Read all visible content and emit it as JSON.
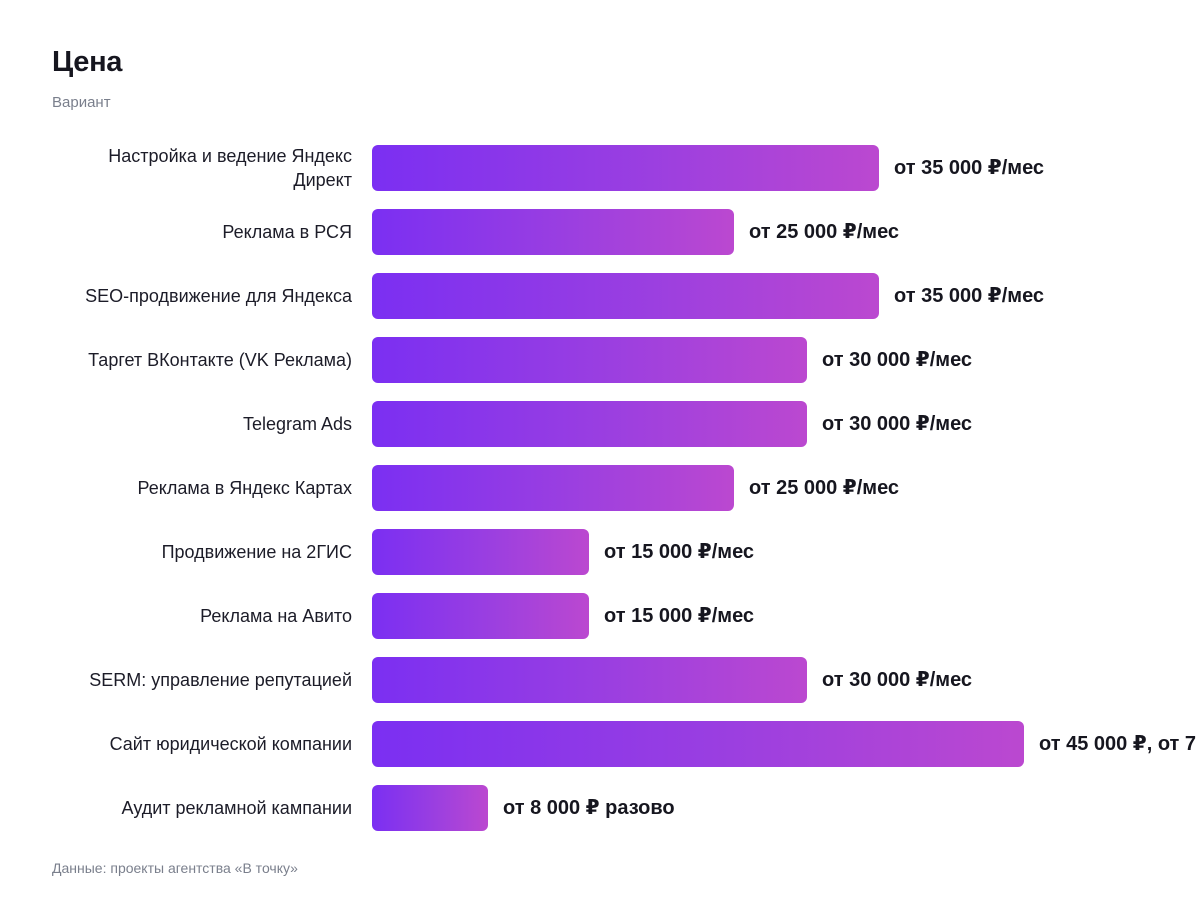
{
  "chart_data": {
    "type": "bar",
    "orientation": "horizontal",
    "title": "Цена",
    "subtitle": "Вариант",
    "source": "Данные: проекты агентства «В точку»",
    "categories": [
      "Настройка и ведение Яндекс Директ",
      "Реклама в РСЯ",
      "SEO-продвижение для Яндекса",
      "Таргет ВКонтакте (VK Реклама)",
      "Telegram Ads",
      "Реклама в Яндекс Картах",
      "Продвижение на 2ГИС",
      "Реклама на Авито",
      "SERM: управление репутацией",
      "Сайт юридической компании",
      "Аудит рекламной кампании"
    ],
    "values": [
      35000,
      25000,
      35000,
      30000,
      30000,
      25000,
      15000,
      15000,
      30000,
      45000,
      8000
    ],
    "value_labels": [
      "от 35 000 ₽/мес",
      "от 25 000 ₽/мес",
      "от 35 000 ₽/мес",
      "от 30 000 ₽/мес",
      "от 30 000 ₽/мес",
      "от 25 000 ₽/мес",
      "от 15 000 ₽/мес",
      "от 15 000 ₽/мес",
      "от 30 000 ₽/мес",
      "от 45 000 ₽, от 7",
      "от 8 000 ₽ разово"
    ],
    "xlim": [
      0,
      45000
    ],
    "grid": false,
    "legend": "none",
    "colors": {
      "bar_start": "#7b2ff2",
      "bar_end": "#bb48d0",
      "text": "#16161f",
      "muted": "#7a7f8c"
    }
  }
}
